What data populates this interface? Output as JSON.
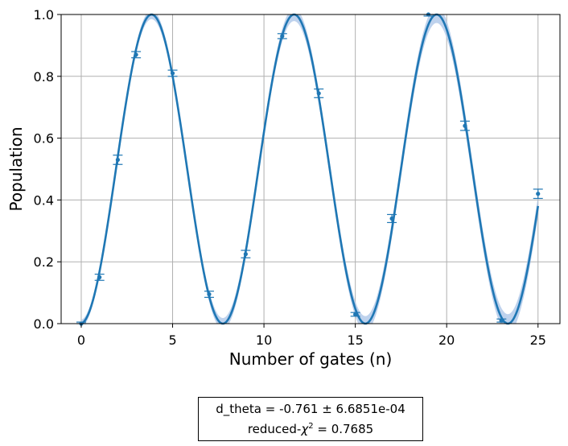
{
  "chart_data": {
    "type": "scatter",
    "xlabel": "Number of gates (n)",
    "ylabel": "Population",
    "xlim": [
      -1.1,
      26.2
    ],
    "ylim": [
      0.0,
      1.0
    ],
    "xticks": [
      0,
      5,
      10,
      15,
      20,
      25
    ],
    "yticks": [
      0.0,
      0.2,
      0.4,
      0.6,
      0.8,
      1.0
    ],
    "grid": true,
    "colors": {
      "series": "#1f77b4",
      "band": "#aec7e8",
      "grid": "#b0b0b0"
    },
    "measured": {
      "x": [
        0,
        1,
        2,
        3,
        5,
        7,
        9,
        11,
        13,
        15,
        17,
        19,
        21,
        23,
        25
      ],
      "y": [
        0.0,
        0.15,
        0.53,
        0.87,
        0.81,
        0.095,
        0.225,
        0.93,
        0.745,
        0.03,
        0.34,
        1.0,
        0.64,
        0.01,
        0.42
      ],
      "yerr": [
        0.005,
        0.01,
        0.015,
        0.01,
        0.01,
        0.01,
        0.012,
        0.008,
        0.014,
        0.006,
        0.013,
        0.005,
        0.015,
        0.005,
        0.015
      ]
    },
    "fit": {
      "model": "population = sin^2((n + 0.18) * 0.4 + 0.55... ) approx, period 7.8 gates",
      "amplitude": 1.0,
      "period": 7.8,
      "first_peak": 3.85
    }
  },
  "annotation": {
    "line1": "d_theta =  -0.761 ±  6.6851e-04",
    "line2_prefix": "reduced-",
    "line2_chi": "χ",
    "line2_sup": "2",
    "line2_suffix": " =  0.7685"
  }
}
